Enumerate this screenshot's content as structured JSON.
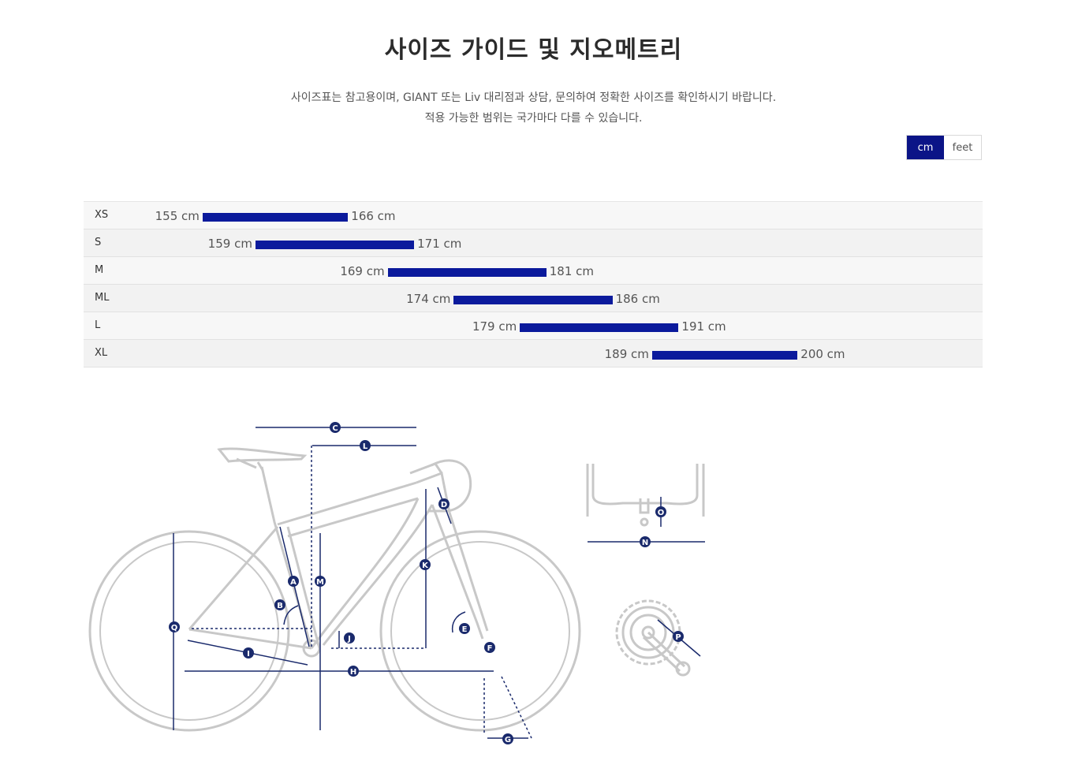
{
  "page": {
    "title": "사이즈 가이드 및 지오메트리",
    "description_line1": "사이즈표는 참고용이며, GIANT 또는 Liv 대리점과 상담, 문의하여 정확한 사이즈를 확인하시기 바랍니다.",
    "description_line2": "적용 가능한 범위는 국가마다 다를 수 있습니다."
  },
  "unit_toggle": {
    "options": [
      {
        "label": "cm",
        "selected": true
      },
      {
        "label": "feet",
        "selected": false
      }
    ]
  },
  "colors": {
    "accent": "#0b1487",
    "bar": "#0b1a9c",
    "diagram_line": "#c8c8c8",
    "marker": "#1a2a6c"
  },
  "size_chart": {
    "scale_range_cm": [
      146,
      214
    ],
    "rows": [
      {
        "size": "XS",
        "min": 155,
        "max": 166,
        "min_label": "155 cm",
        "max_label": "166 cm"
      },
      {
        "size": "S",
        "min": 159,
        "max": 171,
        "min_label": "159 cm",
        "max_label": "171 cm"
      },
      {
        "size": "M",
        "min": 169,
        "max": 181,
        "min_label": "169 cm",
        "max_label": "181 cm"
      },
      {
        "size": "ML",
        "min": 174,
        "max": 186,
        "min_label": "174 cm",
        "max_label": "186 cm"
      },
      {
        "size": "L",
        "min": 179,
        "max": 191,
        "min_label": "179 cm",
        "max_label": "191 cm"
      },
      {
        "size": "XL",
        "min": 189,
        "max": 200,
        "min_label": "189 cm",
        "max_label": "200 cm"
      }
    ]
  },
  "geometry_markers": [
    "A",
    "B",
    "C",
    "D",
    "E",
    "F",
    "G",
    "H",
    "I",
    "J",
    "K",
    "L",
    "M",
    "N",
    "O",
    "P",
    "Q"
  ]
}
